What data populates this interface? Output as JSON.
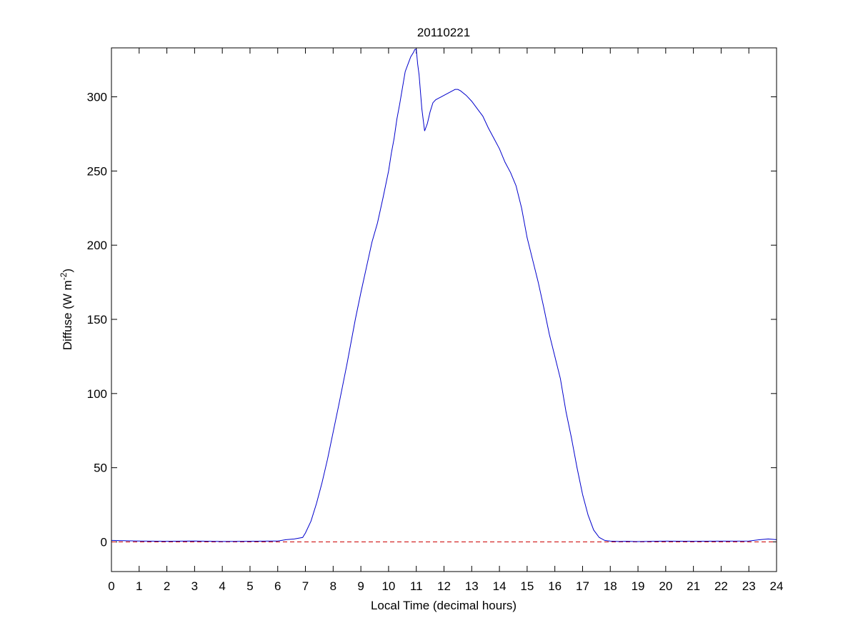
{
  "chart_data": {
    "type": "line",
    "title": "20110221",
    "xlabel": "Local Time (decimal hours)",
    "ylabel": {
      "prefix": "Diffuse (W m",
      "sup": "-2",
      "suffix": ")"
    },
    "xlim": [
      0,
      24
    ],
    "ylim": [
      -20,
      333
    ],
    "xticks": [
      0,
      1,
      2,
      3,
      4,
      5,
      6,
      7,
      8,
      9,
      10,
      11,
      12,
      13,
      14,
      15,
      16,
      17,
      18,
      19,
      20,
      21,
      22,
      23,
      24
    ],
    "yticks": [
      0,
      50,
      100,
      150,
      200,
      250,
      300
    ],
    "grid": false,
    "series": [
      {
        "color": "#0000cc",
        "style": "solid",
        "x": [
          0,
          1,
          2,
          3,
          4,
          5,
          6,
          6.3,
          6.6,
          6.9,
          7.0,
          7.2,
          7.4,
          7.6,
          7.8,
          8.0,
          8.2,
          8.5,
          8.8,
          9.0,
          9.2,
          9.4,
          9.6,
          9.8,
          10.0,
          10.1,
          10.2,
          10.3,
          10.4,
          10.5,
          10.6,
          10.7,
          10.8,
          10.9,
          10.95,
          11.0,
          11.05,
          11.1,
          11.2,
          11.3,
          11.4,
          11.5,
          11.6,
          11.7,
          11.8,
          11.9,
          12.0,
          12.2,
          12.4,
          12.5,
          12.6,
          12.8,
          13.0,
          13.2,
          13.4,
          13.6,
          13.8,
          14.0,
          14.2,
          14.4,
          14.6,
          14.8,
          15.0,
          15.2,
          15.4,
          15.6,
          15.8,
          16.0,
          16.2,
          16.4,
          16.6,
          16.8,
          17.0,
          17.2,
          17.4,
          17.6,
          17.8,
          18.0,
          18.3,
          18.6,
          19,
          20,
          21,
          22,
          23,
          23.4,
          23.7,
          24
        ],
        "y": [
          1,
          0.6,
          0.4,
          0.6,
          0.3,
          0.4,
          0.6,
          1.5,
          2,
          3,
          6,
          14,
          26,
          40,
          56,
          74,
          92,
          120,
          150,
          168,
          185,
          202,
          215,
          232,
          250,
          262,
          272,
          285,
          295,
          306,
          317,
          322,
          327,
          330,
          332,
          332,
          322,
          315,
          292,
          277,
          282,
          290,
          296,
          298,
          299,
          300,
          301,
          303,
          305,
          305,
          304,
          301,
          297,
          292,
          287,
          279,
          272,
          265,
          256,
          249,
          240,
          225,
          205,
          190,
          175,
          158,
          140,
          125,
          110,
          88,
          70,
          50,
          32,
          18,
          8,
          3,
          1,
          0.5,
          0.3,
          0.4,
          0.2,
          0.5,
          0.4,
          0.5,
          0.6,
          1.5,
          2,
          1.5
        ]
      },
      {
        "color": "#cc0000",
        "style": "dashed",
        "x": [
          0,
          24
        ],
        "y": [
          0,
          0
        ]
      }
    ]
  }
}
